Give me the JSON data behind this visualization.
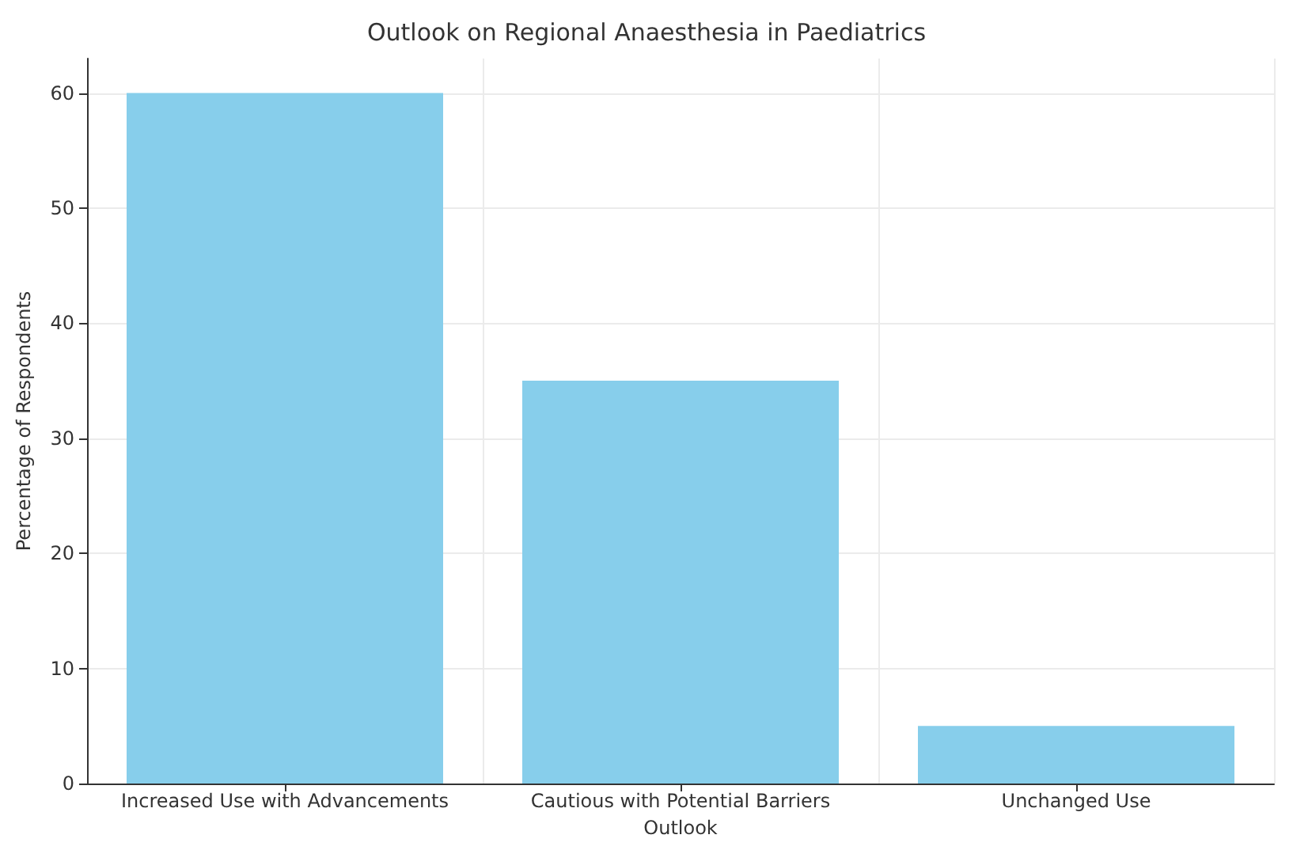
{
  "chart_data": {
    "type": "bar",
    "title": "Outlook on Regional Anaesthesia in Paediatrics",
    "xlabel": "Outlook",
    "ylabel": "Percentage of Respondents",
    "categories": [
      "Increased Use with Advancements",
      "Cautious with Potential Barriers",
      "Unchanged Use"
    ],
    "values": [
      60,
      35,
      5
    ],
    "color": "#87ceeb",
    "ylim": [
      0,
      63
    ],
    "yticks": [
      0,
      10,
      20,
      30,
      40,
      50,
      60
    ],
    "grid": true
  }
}
